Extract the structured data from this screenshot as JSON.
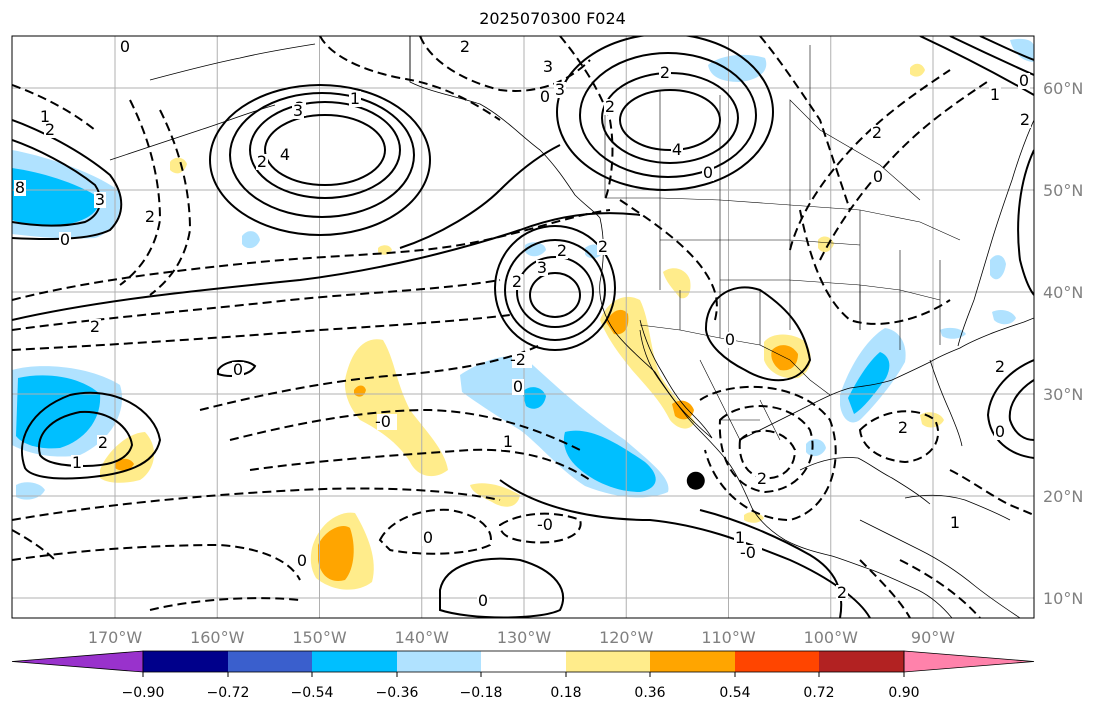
{
  "title": "2025070300 F024",
  "map": {
    "lon_ticks": [
      {
        "value": -170,
        "label": "170°W"
      },
      {
        "value": -160,
        "label": "160°W"
      },
      {
        "value": -150,
        "label": "150°W"
      },
      {
        "value": -140,
        "label": "140°W"
      },
      {
        "value": -130,
        "label": "130°W"
      },
      {
        "value": -120,
        "label": "120°W"
      },
      {
        "value": -110,
        "label": "110°W"
      },
      {
        "value": -100,
        "label": "100°W"
      },
      {
        "value": -90,
        "label": "90°W"
      }
    ],
    "lat_ticks": [
      {
        "value": 60,
        "label": "60°N"
      },
      {
        "value": 50,
        "label": "50°N"
      },
      {
        "value": 40,
        "label": "40°N"
      },
      {
        "value": 30,
        "label": "30°N"
      },
      {
        "value": 20,
        "label": "20°N"
      },
      {
        "value": 10,
        "label": "10°N"
      }
    ],
    "extent": {
      "lon_min": -180,
      "lon_max": -80,
      "lat_min": 8,
      "lat_max": 65
    },
    "marker": {
      "lon": -113.2,
      "lat": 21.5,
      "color": "#000000"
    },
    "contour_labels": [
      "2",
      "0",
      "3",
      "2",
      "0",
      "1",
      "2",
      "4",
      "3",
      "2",
      "1",
      "2",
      "8",
      "3",
      "2",
      "0",
      "2",
      "3",
      "2",
      "0",
      "2",
      "0",
      "1",
      "2",
      "4",
      "0",
      "3",
      "-2",
      "0",
      "2",
      "2",
      "-0",
      "2",
      "1",
      "0",
      "-0",
      "0",
      "0",
      "0",
      "1",
      "2",
      "-0",
      "2",
      "0",
      "1",
      "2",
      "2",
      "0",
      "1",
      "2"
    ]
  },
  "colorbar": {
    "colors": [
      "#9932cc",
      "#00008b",
      "#3a5fcd",
      "#00bfff",
      "#b0e2ff",
      "#ffffff",
      "#ffec8b",
      "#ffa500",
      "#ff4500",
      "#b22222",
      "#ff82ab"
    ],
    "labels": [
      "−0.90",
      "−0.72",
      "−0.54",
      "−0.36",
      "−0.18",
      "0.18",
      "0.36",
      "0.54",
      "0.72",
      "0.90"
    ]
  }
}
